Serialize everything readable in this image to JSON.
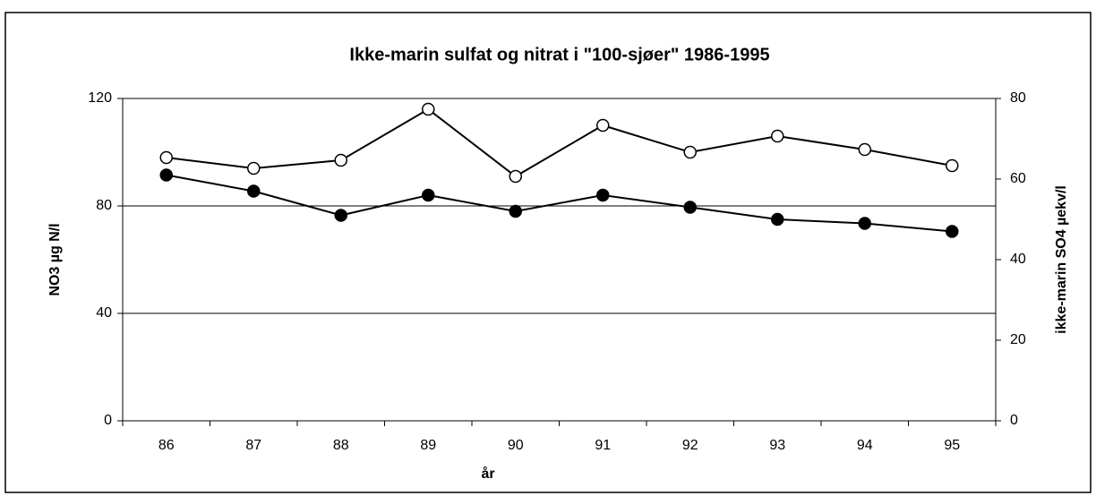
{
  "chart_data": {
    "type": "line",
    "title": "Ikke-marin sulfat og nitrat i \"100-sjøer\" 1986-1995",
    "x_label": "år",
    "y_label": "NO3 µg N/l",
    "y2_label": "ikke-marin SO4 µekv/l",
    "categories": [
      "86",
      "87",
      "88",
      "89",
      "90",
      "91",
      "92",
      "93",
      "94",
      "95"
    ],
    "series": [
      {
        "color": "#ffffff",
        "values": [
          98,
          94,
          97,
          116,
          91,
          110,
          100,
          106,
          101,
          95
        ]
      },
      {
        "color": "#000000",
        "axis": "y2",
        "values": [
          61,
          57,
          51,
          56,
          52,
          56,
          53,
          50,
          49,
          47
        ]
      }
    ],
    "ylim": [
      0,
      120
    ],
    "yticks": [
      0,
      40,
      80,
      120
    ],
    "y2lim": [
      0,
      80
    ],
    "y2ticks": [
      0,
      20,
      40,
      60,
      80
    ],
    "grid": true
  }
}
